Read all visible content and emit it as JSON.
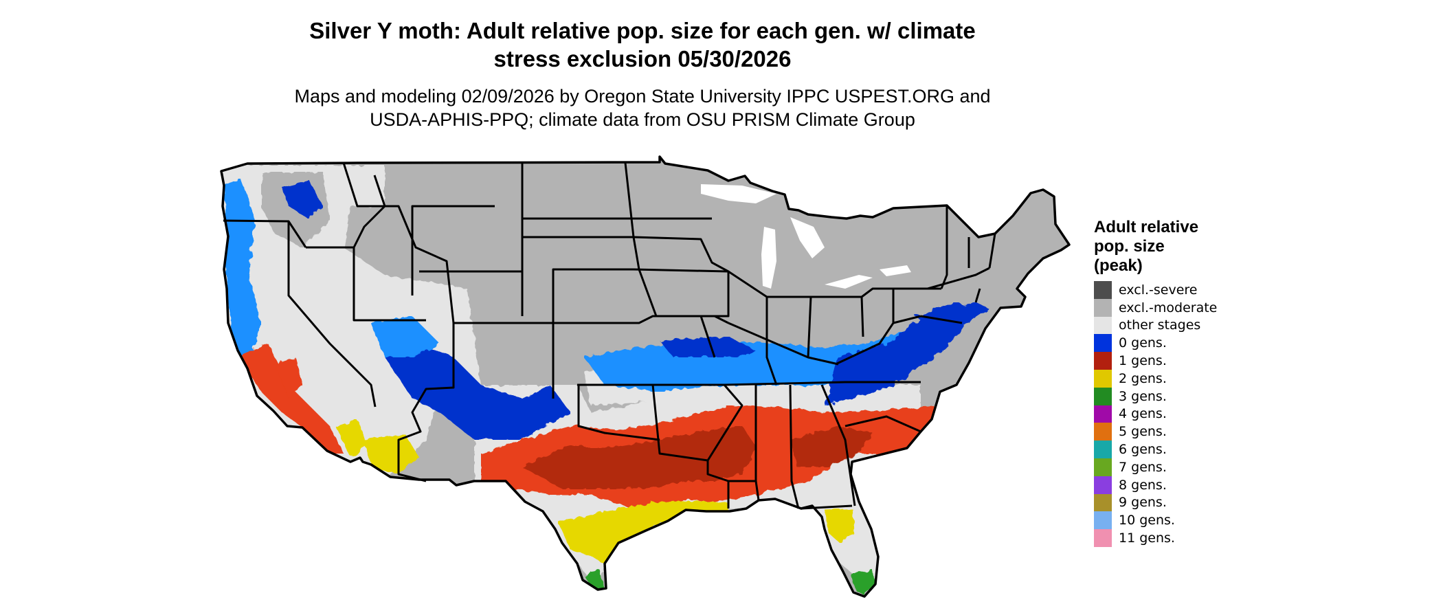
{
  "map": {
    "title": [
      "Silver Y moth: Adult relative pop. size for each gen. w/ climate",
      "stress exclusion 05/30/2026"
    ],
    "subtitle": [
      "Maps and modeling 02/09/2026 by Oregon State University IPPC USPEST.ORG and",
      "USDA-APHIS-PPQ; climate data from OSU PRISM Climate Group"
    ],
    "region": "contiguous-united-states",
    "boundaries": "state-lines",
    "colors": {
      "background": "#ffffff",
      "excl_severe": "#4d4d4d",
      "excl_moderate": "#b3b3b3",
      "other_stages": "#e5e5e5",
      "gens_0_dark": "#0033cc",
      "gens_0_light": "#1e90ff",
      "gens_1": "#b22a0e",
      "gens_1_bright": "#e8401a",
      "gens_2": "#e6d800",
      "gens_3": "#2ca02c",
      "border": "#000000"
    }
  },
  "legend": {
    "title": [
      "Adult relative",
      "pop. size",
      "(peak)"
    ],
    "items": [
      {
        "label": "excl.-severe",
        "color": "#4d4d4d"
      },
      {
        "label": "excl.-moderate",
        "color": "#b3b3b3"
      },
      {
        "label": "other stages",
        "color": "#e5e5e5"
      },
      {
        "label": "0 gens.",
        "color": "#0033dd"
      },
      {
        "label": "1 gens.",
        "color": "#b2200f"
      },
      {
        "label": "2 gens.",
        "color": "#e0c800"
      },
      {
        "label": "3 gens.",
        "color": "#228b22"
      },
      {
        "label": "4 gens.",
        "color": "#a00aa8"
      },
      {
        "label": "5 gens.",
        "color": "#e07010"
      },
      {
        "label": "6 gens.",
        "color": "#18a8a8"
      },
      {
        "label": "7 gens.",
        "color": "#68a820"
      },
      {
        "label": "8 gens.",
        "color": "#8a3ee0"
      },
      {
        "label": "9 gens.",
        "color": "#a8902a"
      },
      {
        "label": "10 gens.",
        "color": "#78b0f0"
      },
      {
        "label": "11 gens.",
        "color": "#f090b0"
      }
    ]
  }
}
